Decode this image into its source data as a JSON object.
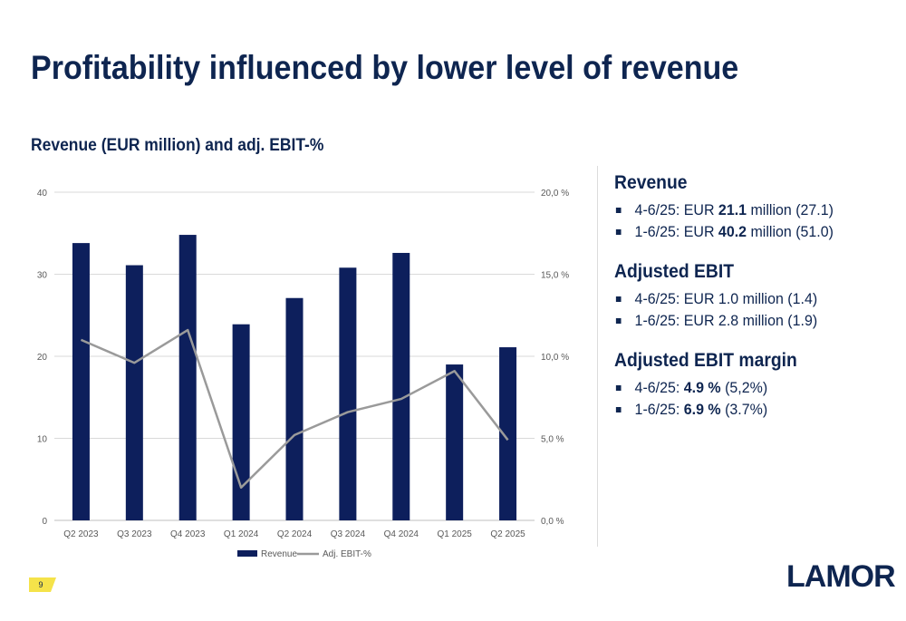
{
  "page": {
    "title": "Profitability influenced by lower level of revenue",
    "page_number": "9",
    "logo_text": "LAMOR"
  },
  "chart_data": {
    "type": "bar",
    "title": "Revenue (EUR million) and adj. EBIT-%",
    "categories": [
      "Q2 2023",
      "Q3 2023",
      "Q4 2023",
      "Q1 2024",
      "Q2 2024",
      "Q3 2024",
      "Q4 2024",
      "Q1 2025",
      "Q2 2025"
    ],
    "series": [
      {
        "name": "Revenue",
        "type": "bar",
        "axis": "left",
        "color": "#0d1f5c",
        "values": [
          33.8,
          31.1,
          34.8,
          23.9,
          27.1,
          30.8,
          32.6,
          19.0,
          21.1
        ]
      },
      {
        "name": "Adj. EBIT-%",
        "type": "line",
        "axis": "right",
        "color": "#9a9a9a",
        "values": [
          11.0,
          9.6,
          11.6,
          2.0,
          5.2,
          6.6,
          7.4,
          9.1,
          4.9
        ]
      }
    ],
    "y_left": {
      "ylim": [
        0,
        40
      ],
      "ticks": [
        "0",
        "10",
        "20",
        "30",
        "40"
      ],
      "tick_values": [
        0,
        10,
        20,
        30,
        40
      ]
    },
    "y_right": {
      "ylim": [
        0,
        20
      ],
      "ticks": [
        "0,0 %",
        "5,0 %",
        "10,0 %",
        "15,0 %",
        "20,0 %"
      ],
      "tick_values": [
        0,
        5,
        10,
        15,
        20
      ]
    },
    "grid": true,
    "legend_position": "bottom"
  },
  "panel": {
    "sections": [
      {
        "heading": "Revenue",
        "items": [
          {
            "before": " 4-6/25: EUR ",
            "bold": "21.1",
            "after": " million (27.1)"
          },
          {
            "before": "1-6/25: EUR ",
            "bold": "40.2",
            "after": " million (51.0)"
          }
        ]
      },
      {
        "heading": "Adjusted EBIT",
        "items": [
          {
            "before": "4-6/25: EUR 1.0 million (1.4)",
            "bold": "",
            "after": ""
          },
          {
            "before": "1-6/25: EUR 2.8 million (1.9)",
            "bold": "",
            "after": ""
          }
        ]
      },
      {
        "heading": "Adjusted EBIT margin",
        "items": [
          {
            "before": "4-6/25: ",
            "bold": "4.9 %",
            "after": " (5,2%)"
          },
          {
            "before": "1-6/25: ",
            "bold": "6.9 %",
            "after": " (3.7%)"
          }
        ]
      }
    ]
  }
}
